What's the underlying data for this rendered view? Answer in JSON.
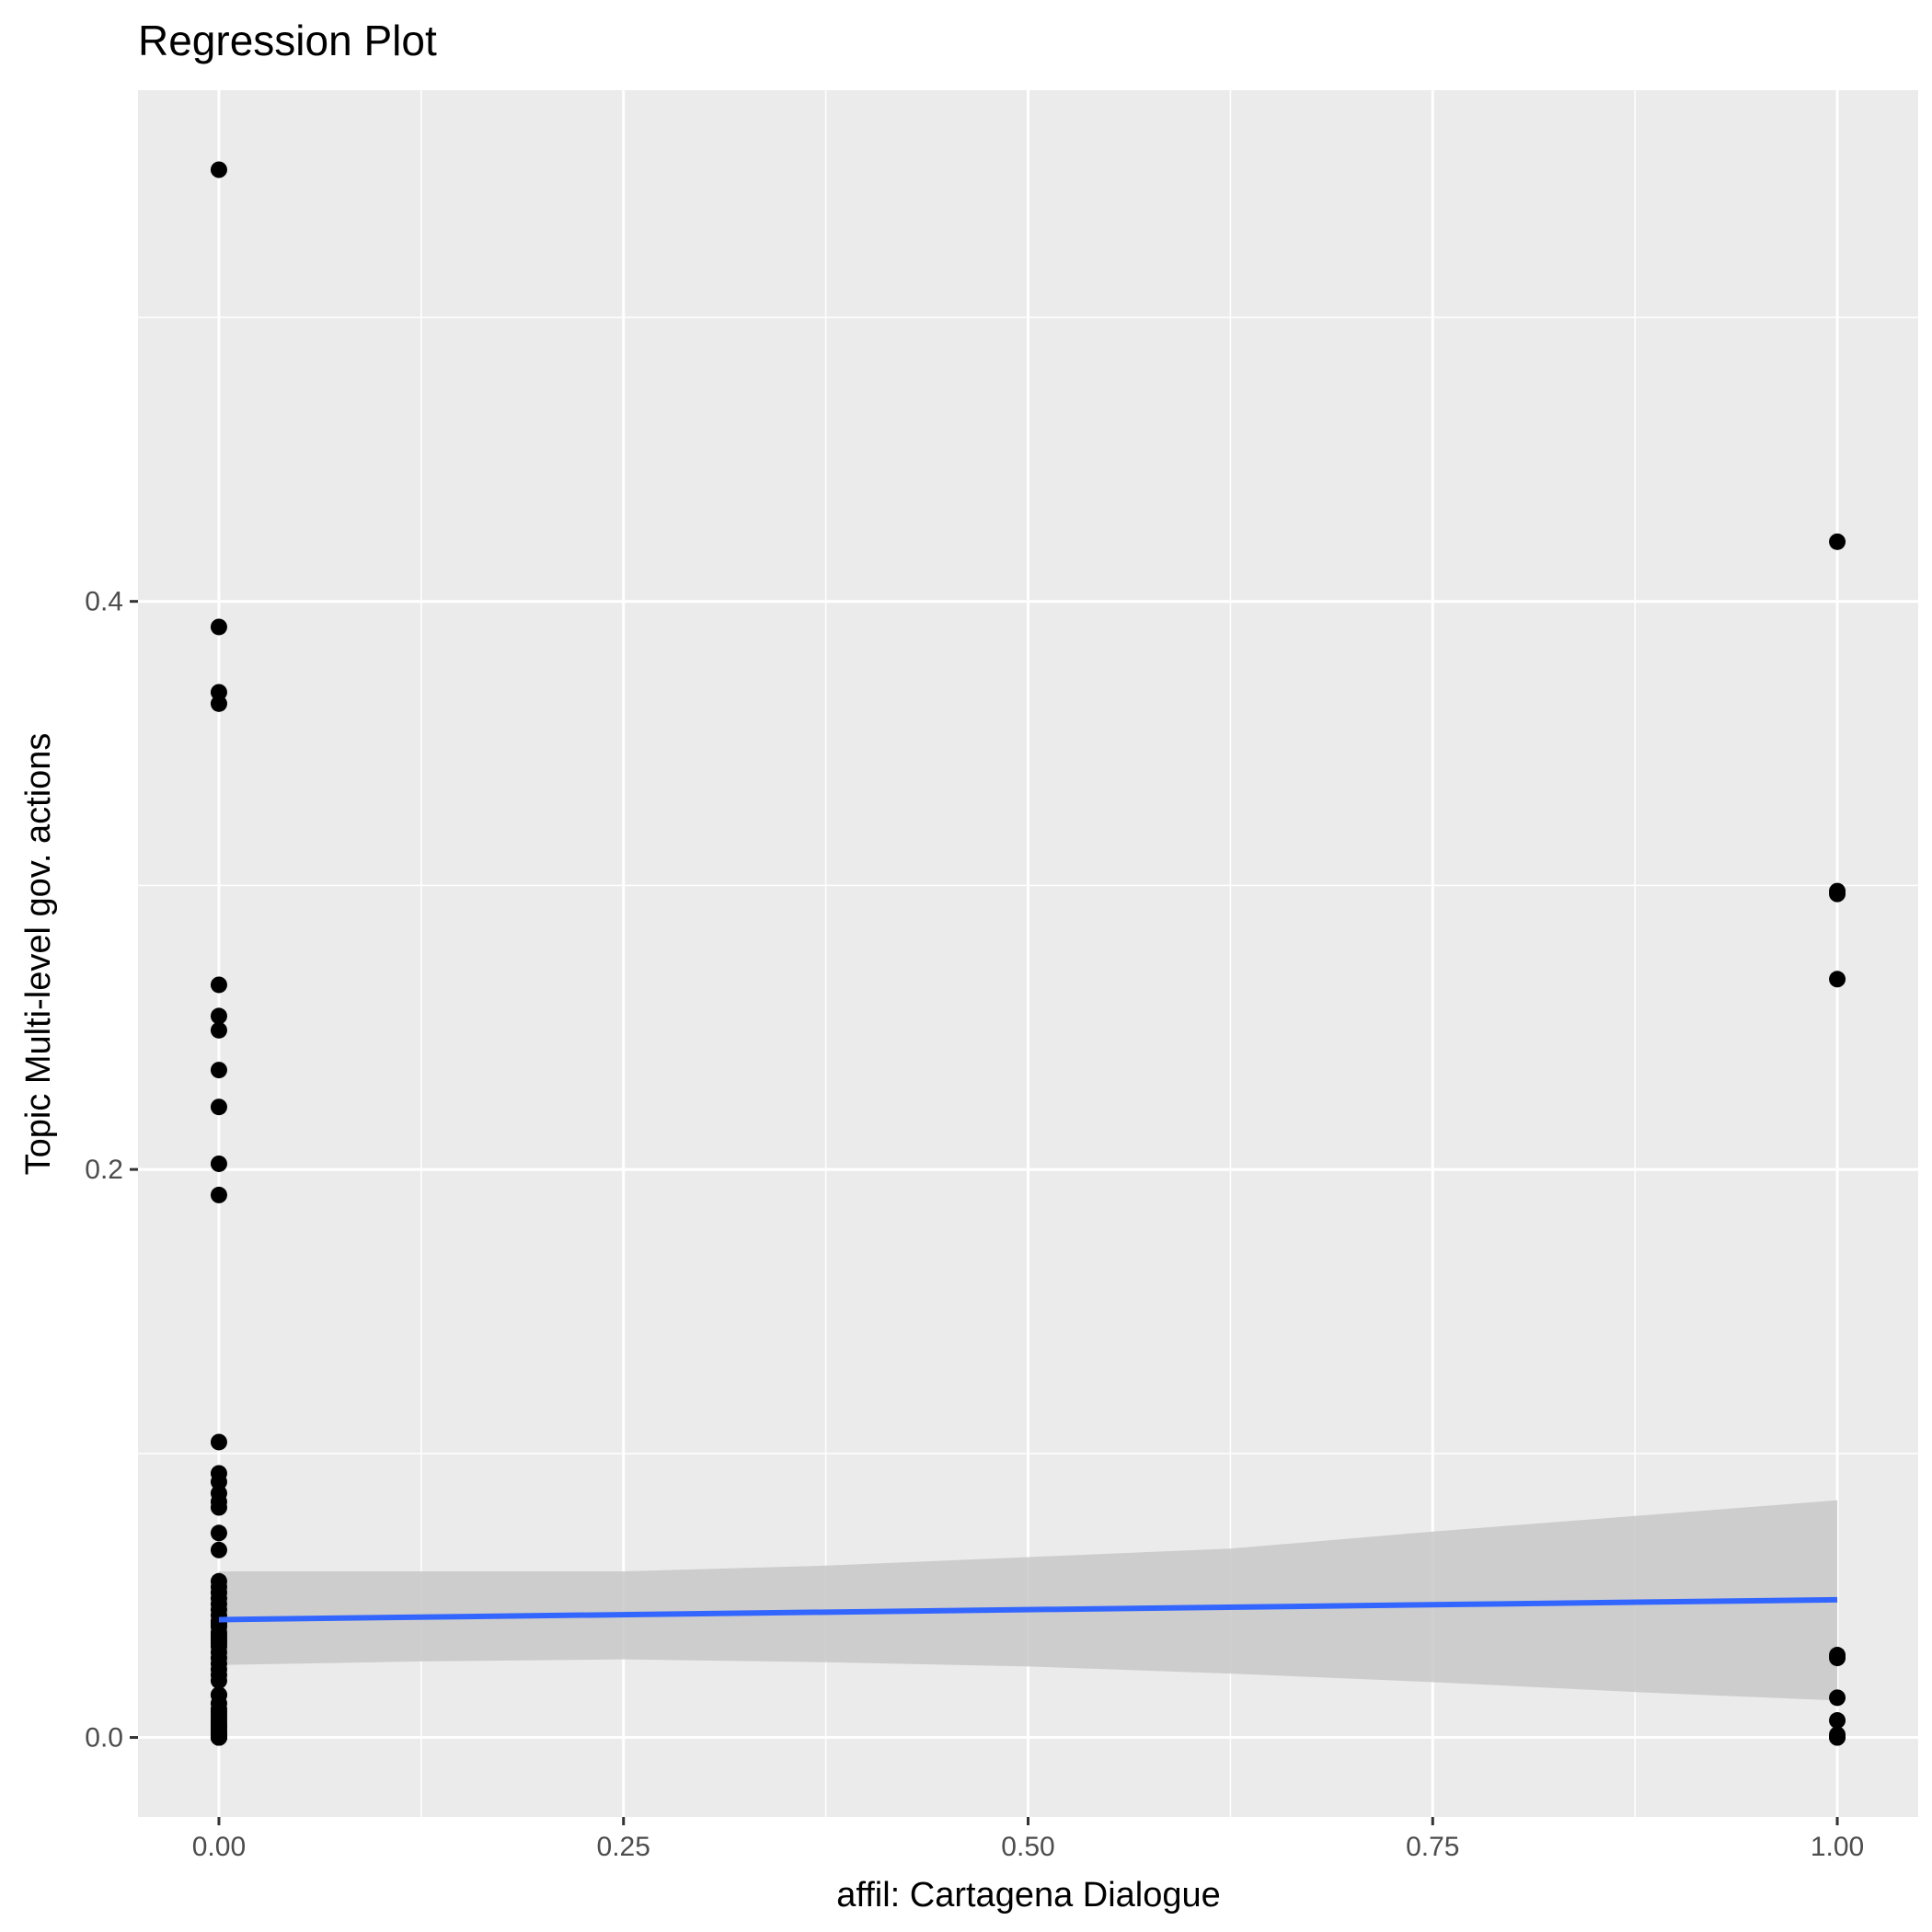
{
  "chart_data": {
    "type": "scatter",
    "title": "Regression Plot",
    "xlabel": "affil: Cartagena Dialogue",
    "ylabel": "Topic Multi-level gov. actions",
    "xlim": [
      -0.05,
      1.05
    ],
    "ylim": [
      -0.028,
      0.58
    ],
    "x_ticks": [
      0.0,
      0.25,
      0.5,
      0.75,
      1.0
    ],
    "x_tick_labels": [
      "0.00",
      "0.25",
      "0.50",
      "0.75",
      "1.00"
    ],
    "x_minor_ticks": [
      0.125,
      0.375,
      0.625,
      0.875
    ],
    "y_ticks": [
      0.0,
      0.2,
      0.4
    ],
    "y_tick_labels": [
      "0.0",
      "0.2",
      "0.4"
    ],
    "y_minor_ticks": [
      0.1,
      0.3,
      0.5
    ],
    "grid": true,
    "colors": {
      "panel_background": "#ebebeb",
      "grid": "#ffffff",
      "points": "#000000",
      "fit_line": "#3366ff",
      "ribbon": "#c8c8c8",
      "tick": "#333333"
    },
    "series": [
      {
        "x": [
          0,
          0,
          0,
          0,
          0,
          0,
          0,
          0,
          0,
          0,
          0,
          0,
          0,
          0,
          0,
          0,
          0,
          0,
          0,
          0,
          0,
          0,
          0,
          0,
          0,
          0,
          0,
          0,
          0,
          0,
          0,
          0,
          0,
          0,
          0,
          0,
          0,
          0,
          0,
          0,
          0,
          0,
          0,
          0,
          0,
          0,
          0,
          0,
          0,
          0,
          0,
          0,
          0,
          0,
          0,
          0,
          0,
          0,
          0,
          0,
          0,
          0,
          1,
          1,
          1,
          1,
          1,
          1,
          1,
          1,
          1,
          1,
          1
        ],
        "y": [
          0.552,
          0.391,
          0.368,
          0.364,
          0.265,
          0.254,
          0.249,
          0.235,
          0.222,
          0.202,
          0.191,
          0.104,
          0.093,
          0.09,
          0.086,
          0.083,
          0.081,
          0.072,
          0.066,
          0.055,
          0.053,
          0.051,
          0.049,
          0.047,
          0.045,
          0.043,
          0.041,
          0.04,
          0.039,
          0.037,
          0.036,
          0.035,
          0.034,
          0.033,
          0.032,
          0.03,
          0.028,
          0.026,
          0.024,
          0.022,
          0.02,
          0.015,
          0.012,
          0.01,
          0.009,
          0.008,
          0.007,
          0.006,
          0.005,
          0.004,
          0.003,
          0.002,
          0.001,
          0.0,
          0.0,
          0.0,
          0.015,
          0.004,
          0.002,
          0.001,
          0.0,
          0.0,
          0.421,
          0.298,
          0.297,
          0.267,
          0.029,
          0.028,
          0.014,
          0.006,
          0.001,
          0.0,
          0.0
        ]
      }
    ],
    "fit": {
      "x": [
        0,
        1
      ],
      "y": [
        0.0415,
        0.0485
      ]
    },
    "ribbon": {
      "x": [
        0,
        0.125,
        0.25,
        0.375,
        0.5,
        0.625,
        0.75,
        0.875,
        1.0
      ],
      "ymin": [
        0.0255,
        0.0268,
        0.0275,
        0.0265,
        0.025,
        0.0225,
        0.0195,
        0.016,
        0.013
      ],
      "ymax": [
        0.0585,
        0.0585,
        0.0585,
        0.0605,
        0.0635,
        0.0665,
        0.0725,
        0.078,
        0.0835
      ]
    }
  }
}
